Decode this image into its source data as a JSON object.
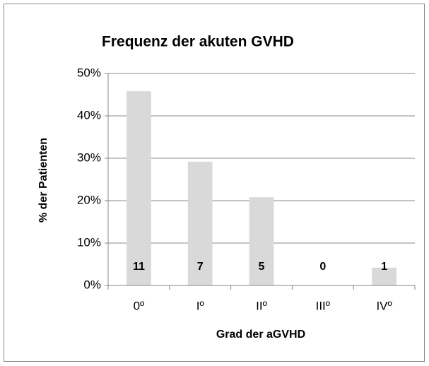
{
  "chart_data": {
    "type": "bar",
    "title": "Frequenz der akuten GVHD",
    "x_label": "Grad der aGVHD",
    "y_label": "% der Patienten",
    "categories": [
      "0º",
      "Iº",
      "IIº",
      "IIIº",
      "IVº"
    ],
    "values": [
      45.8,
      29.2,
      20.8,
      0,
      4.2
    ],
    "patient_counts": [
      "11",
      "7",
      "5",
      "0",
      "1"
    ],
    "color": "#d9d9d9",
    "ylim": [
      0,
      50
    ],
    "yticks": [
      {
        "value": 0,
        "label": "0%"
      },
      {
        "value": 10,
        "label": "10%"
      },
      {
        "value": 20,
        "label": "20%"
      },
      {
        "value": 30,
        "label": "30%"
      },
      {
        "value": 40,
        "label": "40%"
      },
      {
        "value": 50,
        "label": "50%"
      }
    ],
    "grid": true
  }
}
